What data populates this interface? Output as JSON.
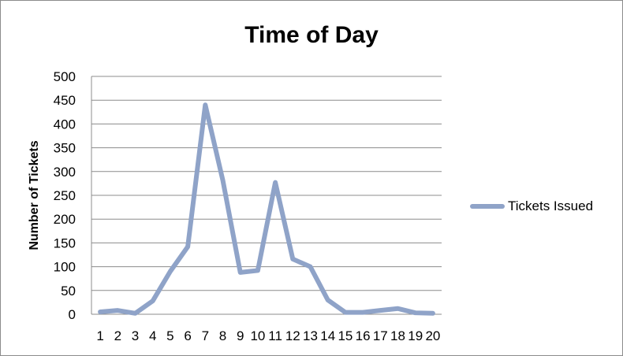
{
  "chart_data": {
    "type": "line",
    "title": "Time of Day",
    "xlabel": "",
    "ylabel": "Number of Tickets",
    "categories": [
      "1",
      "2",
      "3",
      "4",
      "5",
      "6",
      "7",
      "8",
      "9",
      "10",
      "11",
      "12",
      "13",
      "14",
      "15",
      "16",
      "17",
      "18",
      "19",
      "20"
    ],
    "series": [
      {
        "name": "Tickets Issued",
        "color": "#8FA3C8",
        "values": [
          5,
          8,
          2,
          28,
          90,
          142,
          440,
          282,
          88,
          92,
          277,
          116,
          100,
          30,
          4,
          4,
          8,
          12,
          3,
          2
        ]
      }
    ],
    "ylim": [
      0,
      500
    ],
    "yticks": [
      0,
      50,
      100,
      150,
      200,
      250,
      300,
      350,
      400,
      450,
      500
    ],
    "grid": true,
    "legend_position": "right"
  }
}
